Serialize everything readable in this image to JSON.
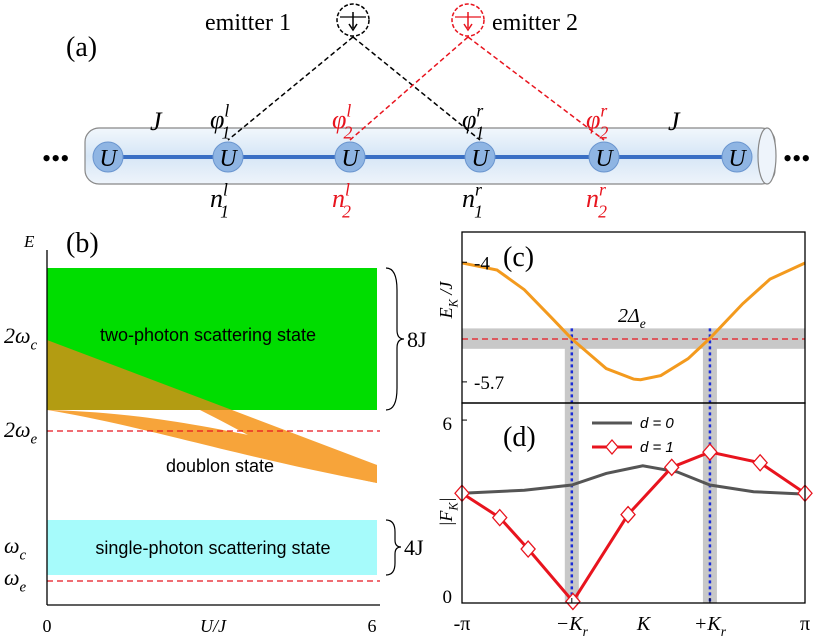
{
  "diagram_a": {
    "label": "(a)",
    "emitters": [
      "emitter 1",
      "emitter 2"
    ],
    "hopping": [
      "J",
      "J"
    ],
    "sites": [
      "U",
      "U",
      "U",
      "U",
      "U",
      "U"
    ],
    "phases": [
      {
        "base": "φ",
        "sub": "1",
        "sup": "l"
      },
      {
        "base": "φ",
        "sub": "2",
        "sup": "l"
      },
      {
        "base": "φ",
        "sub": "1",
        "sup": "r"
      },
      {
        "base": "φ",
        "sub": "2",
        "sup": "r"
      }
    ],
    "occupations": [
      {
        "base": "n",
        "sub": "1",
        "sup": "l"
      },
      {
        "base": "n",
        "sub": "2",
        "sup": "l"
      },
      {
        "base": "n",
        "sub": "1",
        "sup": "r"
      },
      {
        "base": "n",
        "sub": "2",
        "sup": "r"
      }
    ]
  },
  "diagram_b": {
    "label": "(b)",
    "ylabel": "E",
    "xlabel": "U/J",
    "xticks": [
      "0",
      "6"
    ],
    "levels": [
      {
        "base": "2ω",
        "sub": "c"
      },
      {
        "base": "2ω",
        "sub": "e"
      },
      {
        "base": "ω",
        "sub": "c"
      },
      {
        "base": "ω",
        "sub": "e"
      }
    ],
    "bands": [
      "two-photon scattering state",
      "doublon state",
      "single-photon scattering state"
    ],
    "widths": [
      "8J",
      "4J"
    ]
  },
  "chart_data": [
    {
      "type": "line",
      "title": "(c)",
      "ylabel": {
        "base": "E",
        "sub": "K",
        "rest": " /J"
      },
      "xlim": [
        -3.1416,
        3.1416
      ],
      "ylim": [
        -6.0,
        -3.57
      ],
      "yticks": [
        -4,
        -5.7
      ],
      "x": [
        -3.1416,
        -2.5,
        -2,
        -1.5,
        -1.13,
        -0.5,
        0,
        0.13,
        0.5,
        1,
        1.4,
        2,
        2.5,
        3.1416
      ],
      "series": [
        {
          "color": "#f39a1e",
          "values": [
            -4.01,
            -4.11,
            -4.39,
            -4.79,
            -5.09,
            -5.51,
            -5.66,
            -5.67,
            -5.61,
            -5.37,
            -5.08,
            -4.59,
            -4.24,
            -4.01
          ]
        }
      ],
      "hline": -5.09,
      "band": [
        -5.23,
        -4.94
      ],
      "annotation": {
        "base": "2Δ",
        "sub": "e"
      }
    },
    {
      "type": "line",
      "title": "(d)",
      "ylabel": {
        "base": "|F",
        "sub": "K",
        "rest": "|"
      },
      "xlabel": "K",
      "xlim": [
        -3.1416,
        3.1416
      ],
      "ylim": [
        0,
        6.56
      ],
      "yticks": [
        6,
        0
      ],
      "xticks": [
        {
          "value": -3.1416,
          "label": "-π"
        },
        {
          "value": -1.13,
          "label": {
            "base": "−K",
            "sub": "r"
          }
        },
        {
          "value": 1.4,
          "label": {
            "base": "+K",
            "sub": "r"
          }
        },
        {
          "value": 3.1416,
          "label": "π"
        }
      ],
      "vlines": [
        -1.13,
        1.4
      ],
      "legend": "top",
      "series": [
        {
          "name": "d = 0",
          "color": "#555555",
          "marker": false,
          "x": [
            -3.1416,
            -2,
            -1.13,
            -0.5,
            0.17,
            0.8,
            1.4,
            2.2,
            3.1416
          ],
          "values": [
            3.6,
            3.7,
            3.87,
            4.25,
            4.5,
            4.3,
            3.87,
            3.65,
            3.57
          ]
        },
        {
          "name": "d = 1",
          "color": "#e8141e",
          "marker": true,
          "x": [
            -3.1416,
            -2.45,
            -1.93,
            -1.11,
            -0.1,
            0.7,
            1.4,
            2.32,
            3.1416
          ],
          "values": [
            3.6,
            2.8,
            1.77,
            0.05,
            2.9,
            4.45,
            4.95,
            4.6,
            3.6
          ]
        }
      ]
    }
  ]
}
